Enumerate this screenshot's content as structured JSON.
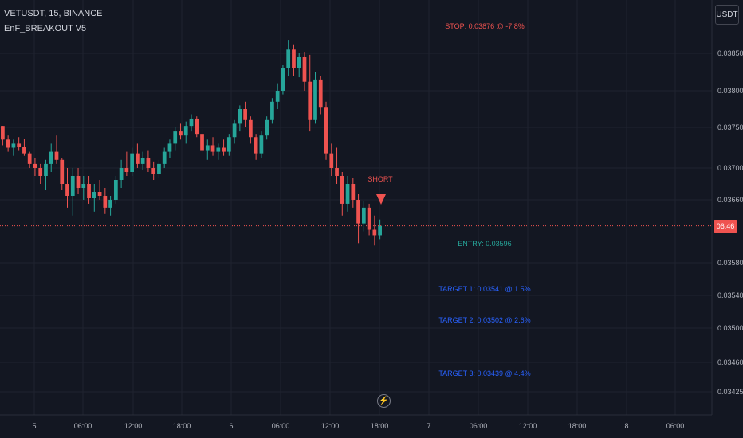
{
  "header": {
    "symbol_line": "VETUSDT, 15, BINANCE",
    "indicator_name": "EnF_BREAKOUT V5"
  },
  "toolbar": {
    "currency": "USDT"
  },
  "price_tag": {
    "label": "06:46"
  },
  "colors": {
    "background": "#131722",
    "up": "#26a69a",
    "down": "#ef5350",
    "grid": "#1f2330",
    "axis_text": "#b2b5be",
    "target": "#2962ff",
    "entry": "#26a69a",
    "stop": "#ef5350"
  },
  "icons": {
    "currency_button": "currency-button",
    "realtime": "lightning-icon",
    "short_marker": "down-triangle-icon"
  },
  "chart_data": {
    "type": "candlestick",
    "symbol": "VETUSDT",
    "interval": "15",
    "exchange": "BINANCE",
    "y_ticks": [
      0.0385,
      0.038,
      0.0375,
      0.037,
      0.0366,
      0.0358,
      0.0354,
      0.035,
      0.0346,
      0.03425
    ],
    "y_tick_labels": [
      "0.03850",
      "0.03800",
      "0.03750",
      "0.03700",
      "0.03660",
      "0.03580",
      "0.03540",
      "0.03500",
      "0.03460",
      "0.03425"
    ],
    "x_ticks": [
      "5",
      "06:00",
      "12:00",
      "18:00",
      "6",
      "06:00",
      "12:00",
      "18:00",
      "7",
      "06:00",
      "12:00",
      "18:00",
      "8",
      "06:00"
    ],
    "current_price": 0.03627,
    "annotations": {
      "stop": "STOP: 0.03876 @ -7.8%",
      "short": "SHORT",
      "entry": "ENTRY: 0.03596",
      "target1": "TARGET 1: 0.03541 @ 1.5%",
      "target2": "TARGET 2: 0.03502 @ 2.6%",
      "target3": "TARGET 3: 0.03439 @ 4.4%"
    },
    "ohlc_summary": [
      [
        0.03752,
        0.03752,
        0.03728,
        0.03735
      ],
      [
        0.03735,
        0.0374,
        0.0372,
        0.03725
      ],
      [
        0.03725,
        0.03735,
        0.03715,
        0.0373
      ],
      [
        0.0373,
        0.03738,
        0.03722,
        0.03726
      ],
      [
        0.03726,
        0.03736,
        0.03715,
        0.03718
      ],
      [
        0.03718,
        0.0372,
        0.037,
        0.03705
      ],
      [
        0.03705,
        0.03712,
        0.0369,
        0.037
      ],
      [
        0.037,
        0.03705,
        0.0368,
        0.0369
      ],
      [
        0.0369,
        0.0371,
        0.03672,
        0.03705
      ],
      [
        0.03705,
        0.0373,
        0.03695,
        0.0372
      ],
      [
        0.0372,
        0.0374,
        0.03705,
        0.0371
      ],
      [
        0.0371,
        0.03712,
        0.03672,
        0.0368
      ],
      [
        0.0368,
        0.037,
        0.0365,
        0.03665
      ],
      [
        0.03665,
        0.037,
        0.0364,
        0.0369
      ],
      [
        0.0369,
        0.037,
        0.03668,
        0.03675
      ],
      [
        0.03675,
        0.0369,
        0.0366,
        0.0368
      ],
      [
        0.0368,
        0.0369,
        0.03655,
        0.03662
      ],
      [
        0.03662,
        0.0368,
        0.03645,
        0.0367
      ],
      [
        0.0367,
        0.03685,
        0.0366,
        0.03665
      ],
      [
        0.03665,
        0.03675,
        0.03642,
        0.0365
      ],
      [
        0.0365,
        0.03665,
        0.0364,
        0.0366
      ],
      [
        0.0366,
        0.0369,
        0.03655,
        0.03685
      ],
      [
        0.03685,
        0.0371,
        0.03675,
        0.037
      ],
      [
        0.037,
        0.0372,
        0.0369,
        0.03695
      ],
      [
        0.03695,
        0.03725,
        0.0369,
        0.03718
      ],
      [
        0.03718,
        0.0373,
        0.037,
        0.03705
      ],
      [
        0.03705,
        0.0372,
        0.03698,
        0.03712
      ],
      [
        0.03712,
        0.03722,
        0.03695,
        0.037
      ],
      [
        0.037,
        0.03708,
        0.03685,
        0.03692
      ],
      [
        0.03692,
        0.0371,
        0.03688,
        0.03705
      ],
      [
        0.03705,
        0.03725,
        0.037,
        0.0372
      ],
      [
        0.0372,
        0.03735,
        0.03712,
        0.0373
      ],
      [
        0.0373,
        0.0375,
        0.03722,
        0.03745
      ],
      [
        0.03745,
        0.03755,
        0.03735,
        0.0374
      ],
      [
        0.0374,
        0.03758,
        0.0373,
        0.03752
      ],
      [
        0.03752,
        0.03768,
        0.03745,
        0.03762
      ],
      [
        0.03762,
        0.03765,
        0.03738,
        0.03742
      ],
      [
        0.03742,
        0.03748,
        0.03718,
        0.03722
      ],
      [
        0.03722,
        0.03735,
        0.0371,
        0.03728
      ],
      [
        0.03728,
        0.03738,
        0.03715,
        0.0372
      ],
      [
        0.0372,
        0.0373,
        0.0371,
        0.03725
      ],
      [
        0.03725,
        0.03735,
        0.03715,
        0.0372
      ],
      [
        0.0372,
        0.03742,
        0.03715,
        0.03738
      ],
      [
        0.03738,
        0.0376,
        0.0373,
        0.03755
      ],
      [
        0.03755,
        0.0378,
        0.03745,
        0.03775
      ],
      [
        0.03775,
        0.03785,
        0.0375,
        0.0376
      ],
      [
        0.0376,
        0.03765,
        0.0373,
        0.03738
      ],
      [
        0.03738,
        0.03742,
        0.0371,
        0.03718
      ],
      [
        0.03718,
        0.03745,
        0.03712,
        0.0374
      ],
      [
        0.0374,
        0.03765,
        0.03735,
        0.0376
      ],
      [
        0.0376,
        0.0379,
        0.03755,
        0.03785
      ],
      [
        0.03785,
        0.0381,
        0.03775,
        0.038
      ],
      [
        0.038,
        0.03835,
        0.03795,
        0.0383
      ],
      [
        0.0383,
        0.03868,
        0.0382,
        0.03855
      ],
      [
        0.03855,
        0.03862,
        0.0382,
        0.0383
      ],
      [
        0.0383,
        0.0385,
        0.03818,
        0.03845
      ],
      [
        0.03845,
        0.03852,
        0.038,
        0.03812
      ],
      [
        0.03812,
        0.03848,
        0.03745,
        0.0376
      ],
      [
        0.0376,
        0.03825,
        0.03755,
        0.03815
      ],
      [
        0.03815,
        0.0382,
        0.03768,
        0.03778
      ],
      [
        0.03778,
        0.03785,
        0.0371,
        0.03718
      ],
      [
        0.03718,
        0.0373,
        0.0369,
        0.037
      ],
      [
        0.037,
        0.03725,
        0.0368,
        0.0369
      ],
      [
        0.0369,
        0.03695,
        0.0364,
        0.03655
      ],
      [
        0.03655,
        0.0369,
        0.03645,
        0.0368
      ],
      [
        0.0368,
        0.03688,
        0.0365,
        0.0366
      ],
      [
        0.0366,
        0.03668,
        0.03605,
        0.0363
      ],
      [
        0.0363,
        0.03658,
        0.0362,
        0.0365
      ],
      [
        0.0365,
        0.03655,
        0.03615,
        0.03622
      ],
      [
        0.03622,
        0.0364,
        0.03602,
        0.03615
      ],
      [
        0.03615,
        0.03635,
        0.0361,
        0.03627
      ]
    ]
  }
}
